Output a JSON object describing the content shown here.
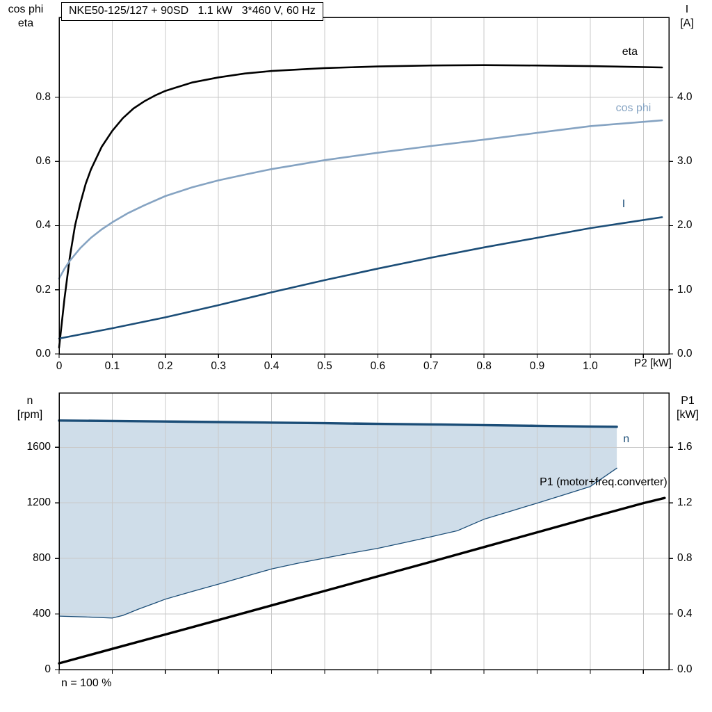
{
  "colors": {
    "grid": "#c9c9c9",
    "axis": "#000000",
    "fill": "#cfdde9",
    "dark_blue": "#1b4d77",
    "light_blue": "#85a3c2",
    "black": "#000000"
  },
  "chart_data": [
    {
      "type": "line",
      "name": "motor-performance",
      "title": "NKE50-125/127 + 90SD   1.1 kW   3*460 V, 60 Hz",
      "left_axis_label": [
        "cos phi",
        "eta"
      ],
      "right_axis_label": [
        "I",
        "[A]"
      ],
      "x_axis": {
        "label": "P2 [kW]",
        "min": 0,
        "max": 1.148,
        "grid": [
          0.1,
          0.2,
          0.3,
          0.4,
          0.5,
          0.6,
          0.7,
          0.8,
          0.9,
          1.0,
          1.1
        ],
        "ticks": [
          {
            "v": 0,
            "label": "0"
          },
          {
            "v": 0.1,
            "label": "0.1"
          },
          {
            "v": 0.2,
            "label": "0.2"
          },
          {
            "v": 0.3,
            "label": "0.3"
          },
          {
            "v": 0.4,
            "label": "0.4"
          },
          {
            "v": 0.5,
            "label": "0.5"
          },
          {
            "v": 0.6,
            "label": "0.6"
          },
          {
            "v": 0.7,
            "label": "0.7"
          },
          {
            "v": 0.8,
            "label": "0.8"
          },
          {
            "v": 0.9,
            "label": "0.9"
          },
          {
            "v": 1.0,
            "label": "1.0"
          }
        ]
      },
      "y_left": {
        "min": 0,
        "max": 1.049,
        "grid": [
          0.2,
          0.4,
          0.6,
          0.8
        ],
        "ticks": [
          {
            "v": 0,
            "label": "0.0"
          },
          {
            "v": 0.2,
            "label": "0.2"
          },
          {
            "v": 0.4,
            "label": "0.4"
          },
          {
            "v": 0.6,
            "label": "0.6"
          },
          {
            "v": 0.8,
            "label": "0.8"
          }
        ]
      },
      "y_right": {
        "min": 0,
        "max": 5.245,
        "ticks": [
          {
            "v": 0,
            "label": "0.0"
          },
          {
            "v": 1,
            "label": "1.0"
          },
          {
            "v": 2,
            "label": "2.0"
          },
          {
            "v": 3,
            "label": "3.0"
          },
          {
            "v": 4,
            "label": "4.0"
          }
        ]
      },
      "series": [
        {
          "name": "eta",
          "axis": "left",
          "color": "#000000",
          "width": 2.6,
          "label": "eta",
          "label_at": [
            1.06,
            0.94
          ],
          "points": [
            [
              0,
              0.02
            ],
            [
              0.01,
              0.17
            ],
            [
              0.02,
              0.3
            ],
            [
              0.03,
              0.4
            ],
            [
              0.04,
              0.47
            ],
            [
              0.05,
              0.53
            ],
            [
              0.06,
              0.575
            ],
            [
              0.08,
              0.645
            ],
            [
              0.1,
              0.695
            ],
            [
              0.12,
              0.735
            ],
            [
              0.14,
              0.765
            ],
            [
              0.16,
              0.787
            ],
            [
              0.18,
              0.805
            ],
            [
              0.2,
              0.82
            ],
            [
              0.25,
              0.846
            ],
            [
              0.3,
              0.862
            ],
            [
              0.35,
              0.874
            ],
            [
              0.4,
              0.882
            ],
            [
              0.5,
              0.891
            ],
            [
              0.6,
              0.896
            ],
            [
              0.7,
              0.899
            ],
            [
              0.8,
              0.9
            ],
            [
              0.9,
              0.899
            ],
            [
              1.0,
              0.897
            ],
            [
              1.135,
              0.893
            ]
          ]
        },
        {
          "name": "cos-phi",
          "axis": "left",
          "color": "#85a3c2",
          "width": 2.6,
          "label": "cos phi",
          "label_at": [
            1.048,
            0.765
          ],
          "points": [
            [
              0,
              0.235
            ],
            [
              0.01,
              0.265
            ],
            [
              0.02,
              0.29
            ],
            [
              0.04,
              0.33
            ],
            [
              0.06,
              0.362
            ],
            [
              0.08,
              0.388
            ],
            [
              0.1,
              0.41
            ],
            [
              0.13,
              0.439
            ],
            [
              0.16,
              0.463
            ],
            [
              0.2,
              0.492
            ],
            [
              0.25,
              0.519
            ],
            [
              0.3,
              0.541
            ],
            [
              0.35,
              0.559
            ],
            [
              0.4,
              0.576
            ],
            [
              0.45,
              0.59
            ],
            [
              0.5,
              0.604
            ],
            [
              0.6,
              0.627
            ],
            [
              0.7,
              0.648
            ],
            [
              0.8,
              0.668
            ],
            [
              0.9,
              0.689
            ],
            [
              1.0,
              0.71
            ],
            [
              1.135,
              0.728
            ]
          ]
        },
        {
          "name": "I",
          "axis": "right",
          "color": "#1b4d77",
          "width": 2.6,
          "label": "I",
          "label_at": [
            1.06,
            2.33
          ],
          "points": [
            [
              0,
              0.24
            ],
            [
              0.05,
              0.32
            ],
            [
              0.1,
              0.4
            ],
            [
              0.2,
              0.57
            ],
            [
              0.3,
              0.76
            ],
            [
              0.4,
              0.96
            ],
            [
              0.5,
              1.15
            ],
            [
              0.6,
              1.33
            ],
            [
              0.7,
              1.5
            ],
            [
              0.8,
              1.66
            ],
            [
              0.9,
              1.81
            ],
            [
              1.0,
              1.96
            ],
            [
              1.135,
              2.13
            ]
          ]
        }
      ]
    },
    {
      "type": "line",
      "name": "speed-power",
      "title": "",
      "footnote": "n = 100 %",
      "left_axis_label": [
        "n",
        "[rpm]"
      ],
      "right_axis_label": [
        "P1",
        "[kW]"
      ],
      "x_axis": {
        "label": "",
        "min": 0,
        "max": 1.148,
        "grid": [
          0.1,
          0.2,
          0.3,
          0.4,
          0.5,
          0.6,
          0.7,
          0.8,
          0.9,
          1.0,
          1.1
        ],
        "ticks": []
      },
      "y_left": {
        "min": 0,
        "max": 1992,
        "grid": [
          400,
          800,
          1200,
          1600
        ],
        "ticks": [
          {
            "v": 0,
            "label": "0"
          },
          {
            "v": 400,
            "label": "400"
          },
          {
            "v": 800,
            "label": "800"
          },
          {
            "v": 1200,
            "label": "1200"
          },
          {
            "v": 1600,
            "label": "1600"
          }
        ]
      },
      "y_right": {
        "min": 0,
        "max": 1.992,
        "ticks": [
          {
            "v": 0,
            "label": "0.0"
          },
          {
            "v": 0.4,
            "label": "0.4"
          },
          {
            "v": 0.8,
            "label": "0.8"
          },
          {
            "v": 1.2,
            "label": "1.2"
          },
          {
            "v": 1.6,
            "label": "1.6"
          }
        ]
      },
      "series": [
        {
          "name": "speed-range-min",
          "axis": "left",
          "color": "#1b4d77",
          "width": 1.3,
          "points": [
            [
              0,
              385
            ],
            [
              0.05,
              379
            ],
            [
              0.1,
              371
            ],
            [
              0.12,
              390
            ],
            [
              0.15,
              436
            ],
            [
              0.18,
              478
            ],
            [
              0.2,
              507
            ],
            [
              0.25,
              562
            ],
            [
              0.3,
              615
            ],
            [
              0.35,
              670
            ],
            [
              0.4,
              724
            ],
            [
              0.45,
              766
            ],
            [
              0.5,
              803
            ],
            [
              0.55,
              839
            ],
            [
              0.6,
              873
            ],
            [
              0.65,
              914
            ],
            [
              0.7,
              956
            ],
            [
              0.75,
              1000
            ],
            [
              0.8,
              1082
            ],
            [
              0.85,
              1140
            ],
            [
              0.9,
              1198
            ],
            [
              0.95,
              1258
            ],
            [
              1.0,
              1318
            ],
            [
              1.05,
              1450
            ]
          ]
        },
        {
          "name": "n",
          "axis": "left",
          "color": "#1b4d77",
          "width": 3.4,
          "label": "n",
          "label_at": [
            1.062,
            1655
          ],
          "points": [
            [
              0,
              1793
            ],
            [
              0.1,
              1790
            ],
            [
              0.2,
              1786
            ],
            [
              0.3,
              1782
            ],
            [
              0.4,
              1778
            ],
            [
              0.5,
              1774
            ],
            [
              0.6,
              1769
            ],
            [
              0.7,
              1765
            ],
            [
              0.8,
              1760
            ],
            [
              0.9,
              1755
            ],
            [
              1.0,
              1750
            ],
            [
              1.05,
              1748
            ]
          ]
        },
        {
          "name": "P1",
          "axis": "right",
          "color": "#000000",
          "width": 3.4,
          "label": "P1 (motor+freq.converter)",
          "label_at": [
            1.145,
            1.345
          ],
          "label_anchor": "end",
          "points": [
            [
              0,
              0.045
            ],
            [
              0.1,
              0.149
            ],
            [
              0.2,
              0.253
            ],
            [
              0.3,
              0.357
            ],
            [
              0.4,
              0.462
            ],
            [
              0.5,
              0.566
            ],
            [
              0.6,
              0.671
            ],
            [
              0.7,
              0.776
            ],
            [
              0.8,
              0.882
            ],
            [
              0.9,
              0.988
            ],
            [
              1.0,
              1.094
            ],
            [
              1.1,
              1.198
            ],
            [
              1.14,
              1.235
            ]
          ]
        }
      ],
      "fill": {
        "upper": "n",
        "lower": "speed-range-min",
        "color": "#cfdde9"
      }
    }
  ]
}
